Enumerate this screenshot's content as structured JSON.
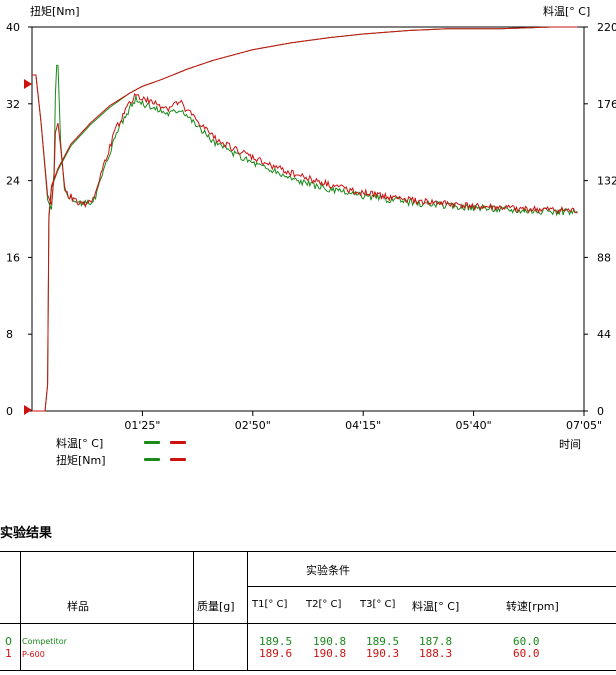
{
  "chart_data": {
    "type": "line",
    "left_axis_title": "扭矩[Nm]",
    "right_axis_title": "料温[° C]",
    "x_axis_title": "时间",
    "left_ylim": [
      0,
      40
    ],
    "left_ticks": [
      "40",
      "32",
      "24",
      "16",
      "8",
      "0"
    ],
    "right_ylim": [
      0,
      220
    ],
    "right_ticks": [
      "220",
      "176",
      "132",
      "88",
      "44",
      "0"
    ],
    "x_range_sec": [
      0,
      425
    ],
    "x_ticks": [
      {
        "label": "01'25\"",
        "sec": 85
      },
      {
        "label": "02'50\"",
        "sec": 170
      },
      {
        "label": "04'15\"",
        "sec": 255
      },
      {
        "label": "05'40\"",
        "sec": 340
      },
      {
        "label": "07'05\"",
        "sec": 425
      }
    ],
    "grid": false,
    "series": [
      {
        "name": "料温[° C] Competitor",
        "axis": "right",
        "color": "#1a8a1a",
        "points": [
          [
            0,
            0
          ],
          [
            10,
            0
          ],
          [
            12,
            15
          ],
          [
            13,
            110
          ],
          [
            15,
            128
          ],
          [
            20,
            138
          ],
          [
            30,
            152
          ],
          [
            45,
            164
          ],
          [
            60,
            174
          ],
          [
            75,
            182
          ],
          [
            85,
            186
          ],
          [
            100,
            190
          ],
          [
            120,
            196
          ],
          [
            140,
            201
          ],
          [
            170,
            207
          ],
          [
            200,
            211
          ],
          [
            230,
            214
          ],
          [
            255,
            216
          ],
          [
            290,
            218
          ],
          [
            320,
            219
          ],
          [
            360,
            219
          ],
          [
            400,
            220
          ],
          [
            420,
            220
          ]
        ]
      },
      {
        "name": "料温[° C] P-600",
        "axis": "right",
        "color": "#cc1111",
        "points": [
          [
            0,
            0
          ],
          [
            10,
            0
          ],
          [
            12,
            15
          ],
          [
            13,
            112
          ],
          [
            15,
            129
          ],
          [
            20,
            139
          ],
          [
            30,
            153
          ],
          [
            45,
            165
          ],
          [
            60,
            175
          ],
          [
            75,
            182
          ],
          [
            85,
            186
          ],
          [
            100,
            190
          ],
          [
            120,
            196
          ],
          [
            140,
            201
          ],
          [
            170,
            207
          ],
          [
            200,
            211
          ],
          [
            230,
            214
          ],
          [
            255,
            216
          ],
          [
            290,
            218
          ],
          [
            320,
            219
          ],
          [
            360,
            219
          ],
          [
            400,
            220
          ],
          [
            420,
            220
          ]
        ]
      },
      {
        "name": "扭矩[Nm] Competitor",
        "axis": "left",
        "color": "#1a8a1a",
        "points": [
          [
            0,
            35
          ],
          [
            3,
            35
          ],
          [
            7,
            30
          ],
          [
            12,
            22
          ],
          [
            15,
            21
          ],
          [
            17,
            25
          ],
          [
            18,
            33
          ],
          [
            19,
            36
          ],
          [
            20,
            36
          ],
          [
            22,
            28
          ],
          [
            25,
            23
          ],
          [
            28,
            22.5
          ],
          [
            33,
            22
          ],
          [
            40,
            21.5
          ],
          [
            48,
            22
          ],
          [
            55,
            25
          ],
          [
            65,
            29
          ],
          [
            75,
            31.5
          ],
          [
            80,
            32.5
          ],
          [
            85,
            32
          ],
          [
            95,
            31.5
          ],
          [
            105,
            31
          ],
          [
            115,
            31.5
          ],
          [
            125,
            30
          ],
          [
            140,
            28
          ],
          [
            160,
            26.5
          ],
          [
            180,
            25.3
          ],
          [
            200,
            24.2
          ],
          [
            230,
            23
          ],
          [
            260,
            22.3
          ],
          [
            300,
            21.6
          ],
          [
            340,
            21.2
          ],
          [
            380,
            20.9
          ],
          [
            420,
            20.7
          ]
        ]
      },
      {
        "name": "扭矩[Nm] P-600",
        "axis": "left",
        "color": "#cc1111",
        "points": [
          [
            0,
            35
          ],
          [
            3,
            35
          ],
          [
            7,
            30
          ],
          [
            12,
            22.5
          ],
          [
            15,
            21.5
          ],
          [
            17,
            24.5
          ],
          [
            18,
            29
          ],
          [
            20,
            30
          ],
          [
            22,
            27.5
          ],
          [
            25,
            23.5
          ],
          [
            28,
            22.5
          ],
          [
            33,
            22
          ],
          [
            40,
            21.5
          ],
          [
            48,
            22.3
          ],
          [
            55,
            25.5
          ],
          [
            65,
            29.5
          ],
          [
            75,
            32
          ],
          [
            80,
            33
          ],
          [
            85,
            32.5
          ],
          [
            95,
            32
          ],
          [
            105,
            31.5
          ],
          [
            110,
            32
          ],
          [
            115,
            32
          ],
          [
            125,
            30.5
          ],
          [
            140,
            28.5
          ],
          [
            160,
            27
          ],
          [
            180,
            25.8
          ],
          [
            200,
            24.8
          ],
          [
            230,
            23.5
          ],
          [
            260,
            22.6
          ],
          [
            300,
            21.8
          ],
          [
            340,
            21.3
          ],
          [
            380,
            21
          ],
          [
            420,
            20.8
          ]
        ]
      }
    ]
  },
  "legend": {
    "rows": [
      {
        "label": "料温[° C]"
      },
      {
        "label": "扭矩[Nm]"
      }
    ],
    "colors": [
      "#1a8a1a",
      "#cc1111"
    ]
  },
  "results": {
    "heading": "实验结果",
    "headers": {
      "sample": "样品",
      "mass": "质量[g]",
      "conditions": "实验条件",
      "t1": "T1[° C]",
      "t2": "T2[° C]",
      "t3": "T3[° C]",
      "melt_temp": "料温[° C]",
      "speed": "转速[rpm]"
    },
    "rows": [
      {
        "index": "0",
        "sample": "Competitor",
        "mass": "",
        "t1": "189.5",
        "t2": "190.8",
        "t3": "189.5",
        "melt_temp": "187.8",
        "speed": "60.0",
        "color": "#1a8a1a"
      },
      {
        "index": "1",
        "sample": "P-600",
        "mass": "",
        "t1": "189.6",
        "t2": "190.8",
        "t3": "190.3",
        "melt_temp": "188.3",
        "speed": "60.0",
        "color": "#cc1111"
      }
    ]
  }
}
